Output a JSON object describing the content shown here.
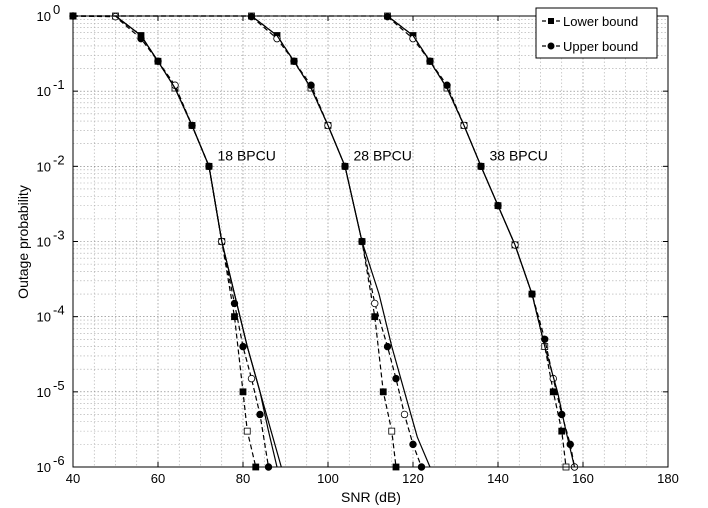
{
  "chart_data": {
    "type": "line",
    "xlabel": "SNR (dB)",
    "ylabel": "Outage probability",
    "xlim": [
      40,
      180
    ],
    "ylim": [
      1e-06,
      1
    ],
    "yscale": "log",
    "grid": true,
    "legend_position": "top-right",
    "x_ticks": [
      40,
      60,
      80,
      100,
      120,
      140,
      160,
      180
    ],
    "x_tick_labels": [
      "40",
      "60",
      "80",
      "100",
      "120",
      "140",
      "160",
      "180"
    ],
    "y_ticks": [
      1e-06,
      1e-05,
      0.0001,
      0.001,
      0.01,
      0.1,
      1
    ],
    "y_tick_labels": [
      {
        "base": "10",
        "exp": "-6"
      },
      {
        "base": "10",
        "exp": "-5"
      },
      {
        "base": "10",
        "exp": "-4"
      },
      {
        "base": "10",
        "exp": "-3"
      },
      {
        "base": "10",
        "exp": "-2"
      },
      {
        "base": "10",
        "exp": "-1"
      },
      {
        "base": "10",
        "exp": "0"
      }
    ],
    "legend": [
      {
        "label": "Lower bound",
        "marker": "square"
      },
      {
        "label": "Upper bound",
        "marker": "circle"
      }
    ],
    "annotations": [
      {
        "text": "18 BPCU",
        "x": 74,
        "y": 0.012
      },
      {
        "text": "28 BPCU",
        "x": 106,
        "y": 0.012
      },
      {
        "text": "38 BPCU",
        "x": 138,
        "y": 0.012
      }
    ],
    "series": [
      {
        "group": "18 BPCU",
        "kind": "lower-bound-dashed",
        "marker": "square",
        "x": [
          40,
          50,
          56,
          60,
          64,
          68,
          72,
          75,
          78,
          80,
          81,
          83
        ],
        "y": [
          1,
          1,
          0.55,
          0.25,
          0.11,
          0.035,
          0.01,
          0.001,
          0.0001,
          1e-05,
          3e-06,
          1e-06
        ]
      },
      {
        "group": "18 BPCU",
        "kind": "upper-bound-dashed",
        "marker": "circle",
        "x": [
          40,
          50,
          56,
          60,
          64,
          68,
          72,
          75,
          78,
          80,
          82,
          84,
          86
        ],
        "y": [
          1,
          0.98,
          0.5,
          0.25,
          0.12,
          0.035,
          0.01,
          0.001,
          0.00015,
          4e-05,
          1.5e-05,
          5e-06,
          1e-06
        ]
      },
      {
        "group": "18 BPCU",
        "kind": "exact-solid-1",
        "x": [
          50,
          56,
          60,
          64,
          68,
          72,
          75,
          78,
          81,
          84,
          87,
          89
        ],
        "y": [
          1,
          0.55,
          0.25,
          0.11,
          0.035,
          0.01,
          0.001,
          0.0002,
          4e-05,
          1e-05,
          2.5e-06,
          1e-06
        ]
      },
      {
        "group": "18 BPCU",
        "kind": "exact-solid-2",
        "x": [
          50,
          56,
          60,
          64,
          68,
          72,
          75,
          78,
          81,
          84,
          86,
          88
        ],
        "y": [
          1,
          0.55,
          0.25,
          0.11,
          0.035,
          0.01,
          0.001,
          0.0002,
          4e-05,
          1e-05,
          3e-06,
          1e-06
        ]
      },
      {
        "group": "28 BPCU",
        "kind": "lower-bound-dashed",
        "marker": "square",
        "x": [
          40,
          82,
          88,
          92,
          96,
          100,
          104,
          108,
          111,
          113,
          115,
          116
        ],
        "y": [
          1,
          1,
          0.55,
          0.25,
          0.11,
          0.035,
          0.01,
          0.001,
          0.0001,
          1e-05,
          3e-06,
          1e-06
        ]
      },
      {
        "group": "28 BPCU",
        "kind": "upper-bound-dashed",
        "marker": "circle",
        "x": [
          82,
          88,
          92,
          96,
          100,
          104,
          108,
          111,
          114,
          116,
          118,
          120,
          122
        ],
        "y": [
          0.98,
          0.5,
          0.25,
          0.12,
          0.035,
          0.01,
          0.001,
          0.00015,
          4e-05,
          1.5e-05,
          5e-06,
          2e-06,
          1e-06
        ]
      },
      {
        "group": "28 BPCU",
        "kind": "exact-solid-1",
        "x": [
          82,
          88,
          92,
          96,
          100,
          104,
          108,
          112,
          115,
          118,
          121,
          124
        ],
        "y": [
          1,
          0.55,
          0.25,
          0.11,
          0.035,
          0.01,
          0.001,
          0.0002,
          4e-05,
          1e-05,
          2.5e-06,
          1e-06
        ]
      },
      {
        "group": "38 BPCU",
        "kind": "lower-bound-dashed",
        "marker": "square",
        "x": [
          40,
          114,
          120,
          124,
          128,
          132,
          136,
          140,
          144,
          148,
          151,
          153,
          155,
          156
        ],
        "y": [
          1,
          1,
          0.55,
          0.25,
          0.11,
          0.035,
          0.01,
          0.003,
          0.0009,
          0.0002,
          4e-05,
          1e-05,
          3e-06,
          1e-06
        ]
      },
      {
        "group": "38 BPCU",
        "kind": "upper-bound-dashed",
        "marker": "circle",
        "x": [
          114,
          120,
          124,
          128,
          132,
          136,
          140,
          144,
          148,
          151,
          153,
          155,
          157,
          158
        ],
        "y": [
          0.98,
          0.5,
          0.25,
          0.12,
          0.035,
          0.01,
          0.003,
          0.0009,
          0.0002,
          5e-05,
          1.5e-05,
          5e-06,
          2e-06,
          1e-06
        ]
      },
      {
        "group": "38 BPCU",
        "kind": "exact-solid-1",
        "x": [
          114,
          120,
          124,
          128,
          132,
          136,
          140,
          144,
          148,
          151,
          154,
          156,
          158
        ],
        "y": [
          1,
          0.55,
          0.25,
          0.11,
          0.035,
          0.01,
          0.003,
          0.0009,
          0.0002,
          4e-05,
          1e-05,
          3e-06,
          1e-06
        ]
      }
    ]
  }
}
